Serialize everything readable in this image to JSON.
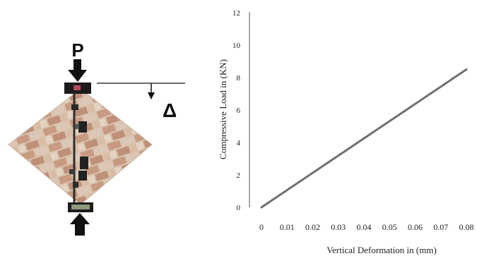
{
  "diagram": {
    "load_label": "P",
    "deformation_label": "Δ"
  },
  "chart_data": {
    "type": "line",
    "title": "",
    "xlabel": "Vertical Deformation in (mm)",
    "ylabel": "Compressive Load in (KN)",
    "xlim": [
      0,
      0.08
    ],
    "ylim": [
      0,
      12
    ],
    "x_ticks": [
      "0",
      "0.01",
      "0.02",
      "0.03",
      "0.04",
      "0.05",
      "0.06",
      "0.07",
      "0.08"
    ],
    "y_ticks": [
      "0",
      "2",
      "4",
      "6",
      "8",
      "10",
      "12"
    ],
    "grid": false,
    "series": [
      {
        "color": "#707070",
        "x": [
          0,
          0.08
        ],
        "y": [
          0,
          8.5
        ]
      }
    ]
  }
}
